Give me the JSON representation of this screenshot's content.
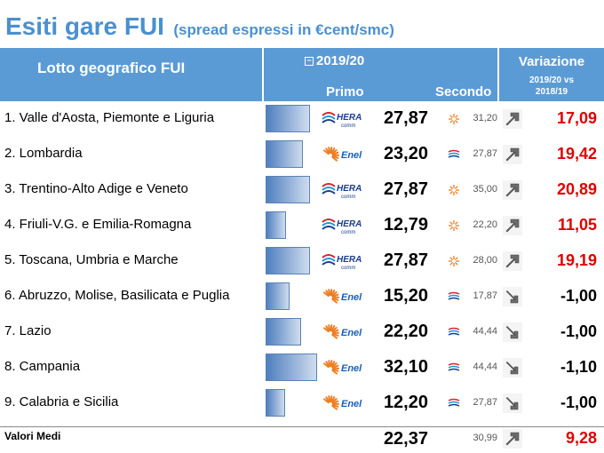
{
  "title": "Esiti gare FUI",
  "subtitle": "(spread espressi in €cent/smc)",
  "header": {
    "lotto": "Lotto geografico FUI",
    "year": "2019/20",
    "year_toggle": "−",
    "primo": "Primo",
    "secondo": "Secondo",
    "variazione": "Variazione",
    "variazione_sub1": "2019/20 vs",
    "variazione_sub2": "2018/19"
  },
  "colors": {
    "header_bg": "#5b9bd5",
    "title": "#4a90d0",
    "positive": "#e00000",
    "negative": "#000000",
    "hera": "#1a3d8f",
    "enel": "#ee7e22"
  },
  "logos": {
    "hera": {
      "text": "HERA",
      "sub": "comm"
    },
    "enel": {
      "text": "Enel"
    }
  },
  "rows": [
    {
      "name": "1. Valle d'Aosta, Piemonte e Liguria",
      "bar_value": 27.87,
      "primo_logo": "hera",
      "primo": "27,87",
      "secondo_logo": "enel-sun-icon",
      "secondo": "31,20",
      "arrow": "up-arrow-icon",
      "variazione": "17,09",
      "positive": true
    },
    {
      "name": "2. Lombardia",
      "bar_value": 23.2,
      "primo_logo": "enel",
      "primo": "23,20",
      "secondo_logo": "hera-wave-icon",
      "secondo": "27,87",
      "arrow": "up-arrow-icon",
      "variazione": "19,42",
      "positive": true
    },
    {
      "name": "3. Trentino-Alto Adige e Veneto",
      "bar_value": 27.87,
      "primo_logo": "hera",
      "primo": "27,87",
      "secondo_logo": "enel-sun-icon",
      "secondo": "35,00",
      "arrow": "up-arrow-icon",
      "variazione": "20,89",
      "positive": true
    },
    {
      "name": "4. Friuli-V.G. e Emilia-Romagna",
      "bar_value": 12.79,
      "primo_logo": "hera",
      "primo": "12,79",
      "secondo_logo": "enel-sun-icon",
      "secondo": "22,20",
      "arrow": "up-arrow-icon",
      "variazione": "11,05",
      "positive": true
    },
    {
      "name": "5. Toscana, Umbria e Marche",
      "bar_value": 27.87,
      "primo_logo": "hera",
      "primo": "27,87",
      "secondo_logo": "enel-sun-icon",
      "secondo": "28,00",
      "arrow": "up-arrow-icon",
      "variazione": "19,19",
      "positive": true
    },
    {
      "name": "6. Abruzzo, Molise, Basilicata e Puglia",
      "bar_value": 15.2,
      "primo_logo": "enel",
      "primo": "15,20",
      "secondo_logo": "hera-wave-icon",
      "secondo": "17,87",
      "arrow": "down-arrow-icon",
      "variazione": "-1,00",
      "positive": false
    },
    {
      "name": "7.  Lazio",
      "bar_value": 22.2,
      "primo_logo": "enel",
      "primo": "22,20",
      "secondo_logo": "hera-wave-icon",
      "secondo": "44,44",
      "arrow": "down-arrow-icon",
      "variazione": "-1,00",
      "positive": false
    },
    {
      "name": "8. Campania",
      "bar_value": 32.1,
      "primo_logo": "enel",
      "primo": "32,10",
      "secondo_logo": "hera-wave-icon",
      "secondo": "44,44",
      "arrow": "down-arrow-icon",
      "variazione": "-1,10",
      "positive": false
    },
    {
      "name": "9. Calabria e Sicilia",
      "bar_value": 12.2,
      "primo_logo": "enel",
      "primo": "12,20",
      "secondo_logo": "hera-wave-icon",
      "secondo": "27,87",
      "arrow": "down-arrow-icon",
      "variazione": "-1,00",
      "positive": false
    }
  ],
  "footer": {
    "name": "Valori Medi",
    "primo": "22,37",
    "secondo": "30,99",
    "arrow": "up-arrow-icon",
    "variazione": "9,28",
    "positive": true
  },
  "bar_max": 32.1
}
